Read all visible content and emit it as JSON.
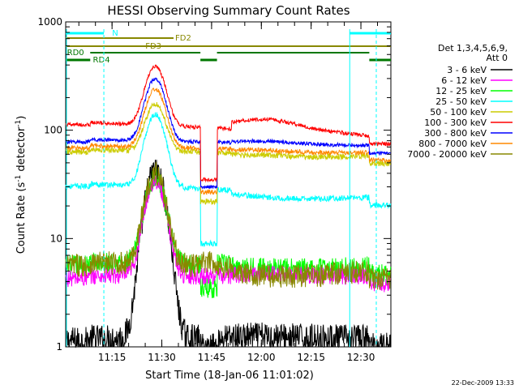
{
  "chart_data": {
    "type": "line",
    "title": "HESSI Observing Summary Count Rates",
    "xlabel": "Start Time (18-Jan-06 11:01:02)",
    "ylabel_main": "Count Rate (s",
    "ylabel_sup1": "-1",
    "ylabel_mid": " detector",
    "ylabel_sup2": "-1",
    "ylabel_end": ")",
    "y_scale": "log",
    "ylim": [
      1,
      1000
    ],
    "xlim_minutes": [
      0,
      98
    ],
    "y_ticks": [
      {
        "value": 1,
        "label": "1"
      },
      {
        "value": 10,
        "label": "10"
      },
      {
        "value": 100,
        "label": "100"
      },
      {
        "value": 1000,
        "label": "1000"
      }
    ],
    "x_ticks": [
      {
        "minute": 13.97,
        "label": "11:15"
      },
      {
        "minute": 28.97,
        "label": "11:30"
      },
      {
        "minute": 43.97,
        "label": "11:45"
      },
      {
        "minute": 58.97,
        "label": "12:00"
      },
      {
        "minute": 73.97,
        "label": "12:15"
      },
      {
        "minute": 88.97,
        "label": "12:30"
      }
    ],
    "legend_header": [
      "Det 1,3,4,5,6,9,",
      "Att 0"
    ],
    "legend_placement": "right",
    "series": [
      {
        "name": "3 - 6 keV",
        "color": "#000000"
      },
      {
        "name": "6 - 12 keV",
        "color": "#ff00ff"
      },
      {
        "name": "12 - 25 keV",
        "color": "#00ff00"
      },
      {
        "name": "25 - 50 keV",
        "color": "#00ffff"
      },
      {
        "name": "50 - 100 keV",
        "color": "#cccc00"
      },
      {
        "name": "100 - 300 keV",
        "color": "#ff0000"
      },
      {
        "name": "300 - 800 keV",
        "color": "#0000ff"
      },
      {
        "name": "800 - 7000 keV",
        "color": "#ff8800"
      },
      {
        "name": "7000 - 20000 keV",
        "color": "#888800"
      }
    ],
    "flag_labels": {
      "N": "N",
      "FD2": "FD2",
      "FD3": "FD3",
      "RD0": "RD0",
      "RD4": "RD4"
    },
    "footer_date": "22-Dec-2009 13:33"
  }
}
